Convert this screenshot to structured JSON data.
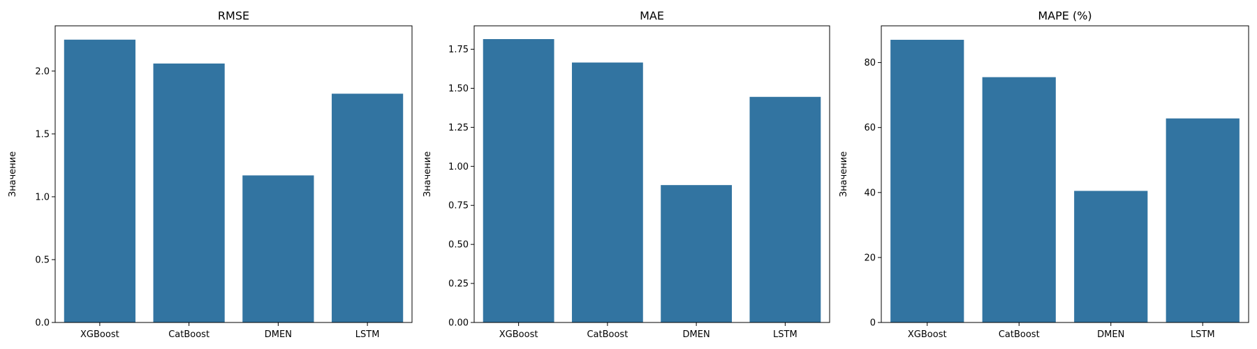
{
  "chart_data": [
    {
      "type": "bar",
      "title": "RMSE",
      "xlabel": "",
      "ylabel": "Значение",
      "categories": [
        "XGBoost",
        "CatBoost",
        "DMEN",
        "LSTM"
      ],
      "values": [
        2.25,
        2.06,
        1.17,
        1.82
      ],
      "ylim": [
        0,
        2.36
      ],
      "yticks": [
        0.0,
        0.5,
        1.0,
        1.5,
        2.0
      ],
      "ytick_labels": [
        "0.0",
        "0.5",
        "1.0",
        "1.5",
        "2.0"
      ],
      "color": "#3274a1",
      "grid": false
    },
    {
      "type": "bar",
      "title": "MAE",
      "xlabel": "",
      "ylabel": "Значение",
      "categories": [
        "XGBoost",
        "CatBoost",
        "DMEN",
        "LSTM"
      ],
      "values": [
        1.815,
        1.665,
        0.88,
        1.445
      ],
      "ylim": [
        0,
        1.9
      ],
      "yticks": [
        0.0,
        0.25,
        0.5,
        0.75,
        1.0,
        1.25,
        1.5,
        1.75
      ],
      "ytick_labels": [
        "0.00",
        "0.25",
        "0.50",
        "0.75",
        "1.00",
        "1.25",
        "1.50",
        "1.75"
      ],
      "color": "#3274a1",
      "grid": false
    },
    {
      "type": "bar",
      "title": "MAPE (%)",
      "xlabel": "",
      "ylabel": "Значение",
      "categories": [
        "XGBoost",
        "CatBoost",
        "DMEN",
        "LSTM"
      ],
      "values": [
        87.0,
        75.5,
        40.5,
        62.8
      ],
      "ylim": [
        0,
        91.3
      ],
      "yticks": [
        0,
        20,
        40,
        60,
        80
      ],
      "ytick_labels": [
        "0",
        "20",
        "40",
        "60",
        "80"
      ],
      "color": "#3274a1",
      "grid": false
    }
  ]
}
